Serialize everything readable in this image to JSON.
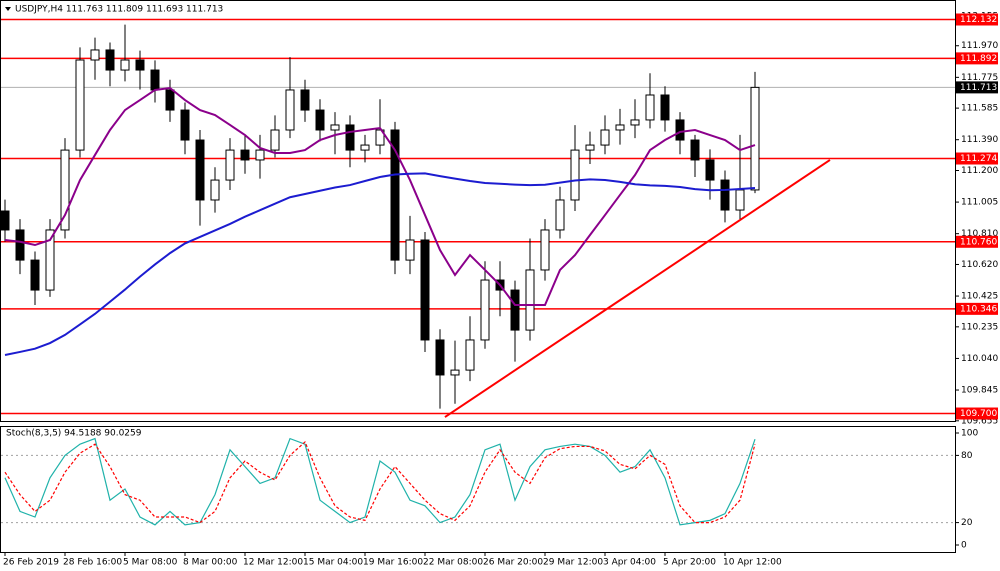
{
  "chart_data": [
    {
      "type": "candlestick",
      "title": "USDJPY,H4  111.763 111.809 111.693 111.713",
      "categories": [
        "26 Feb 2019",
        null,
        null,
        null,
        "28 Feb 16:00",
        null,
        null,
        null,
        "5 Mar 08:00",
        null,
        null,
        null,
        "8 Mar 00:00",
        null,
        null,
        null,
        "12 Mar 12:00",
        null,
        null,
        null,
        "15 Mar 04:00",
        null,
        null,
        null,
        "19 Mar 16:00",
        null,
        null,
        null,
        "22 Mar 08:00",
        null,
        null,
        null,
        "26 Mar 20:00",
        null,
        null,
        null,
        "29 Mar 12:00",
        null,
        null,
        null,
        "3 Apr 04:00",
        null,
        null,
        null,
        "5 Apr 20:00",
        null,
        null,
        null,
        "10 Apr 12:00",
        null,
        null
      ],
      "open": [
        110.95,
        110.833,
        110.647,
        110.462,
        110.833,
        111.326,
        111.882,
        111.944,
        111.82,
        111.882,
        111.82,
        111.697,
        111.573,
        111.388,
        111.018,
        111.141,
        111.326,
        111.265,
        111.326,
        111.45,
        111.697,
        111.573,
        111.45,
        111.481,
        111.326,
        111.357,
        111.45,
        110.647,
        110.771,
        110.154,
        109.938,
        109.968,
        110.154,
        110.524,
        110.462,
        110.215,
        110.586,
        110.833,
        111.018,
        111.326,
        111.357,
        111.45,
        111.481,
        111.512,
        111.666,
        111.512,
        111.388,
        111.265,
        111.141,
        110.956,
        111.08
      ],
      "high": [
        111.02,
        110.9,
        110.7,
        110.9,
        111.4,
        111.96,
        112.02,
        111.99,
        112.1,
        111.94,
        111.88,
        111.76,
        111.62,
        111.45,
        111.22,
        111.4,
        111.42,
        111.42,
        111.54,
        111.9,
        111.76,
        111.64,
        111.56,
        111.54,
        111.42,
        111.64,
        111.5,
        110.92,
        110.82,
        110.22,
        110.15,
        110.3,
        110.64,
        110.64,
        110.52,
        110.78,
        110.9,
        111.1,
        111.48,
        111.44,
        111.54,
        111.58,
        111.64,
        111.8,
        111.72,
        111.56,
        111.42,
        111.33,
        111.2,
        111.42,
        111.809
      ],
      "low": [
        110.76,
        110.56,
        110.37,
        110.42,
        110.78,
        111.28,
        111.76,
        111.72,
        111.75,
        111.7,
        111.62,
        111.5,
        111.3,
        110.86,
        110.94,
        111.08,
        111.18,
        111.15,
        111.28,
        111.4,
        111.5,
        111.38,
        111.3,
        111.22,
        111.25,
        111.3,
        110.56,
        110.56,
        110.08,
        109.73,
        109.76,
        109.9,
        110.1,
        110.3,
        110.02,
        110.15,
        110.52,
        110.78,
        110.95,
        111.24,
        111.3,
        111.36,
        111.4,
        111.46,
        111.44,
        111.3,
        111.16,
        111.02,
        110.88,
        110.9,
        111.06
      ],
      "close": [
        110.833,
        110.647,
        110.462,
        110.833,
        111.326,
        111.882,
        111.944,
        111.82,
        111.882,
        111.82,
        111.697,
        111.573,
        111.388,
        111.018,
        111.141,
        111.326,
        111.265,
        111.326,
        111.45,
        111.697,
        111.573,
        111.45,
        111.481,
        111.326,
        111.357,
        111.45,
        110.647,
        110.771,
        110.154,
        109.938,
        109.968,
        110.154,
        110.524,
        110.462,
        110.215,
        110.586,
        110.833,
        111.018,
        111.326,
        111.357,
        111.45,
        111.481,
        111.512,
        111.666,
        111.512,
        111.388,
        111.265,
        111.141,
        110.956,
        111.08,
        111.713
      ],
      "series": [
        {
          "color": "#8b008b",
          "values": [
            110.771,
            110.76,
            110.74,
            110.771,
            110.925,
            111.141,
            111.296,
            111.45,
            111.573,
            111.635,
            111.697,
            111.709,
            111.635,
            111.573,
            111.542,
            111.481,
            111.419,
            111.339,
            111.308,
            111.308,
            111.326,
            111.388,
            111.419,
            111.438,
            111.45,
            111.462,
            111.326,
            111.141,
            110.925,
            110.709,
            110.555,
            110.678,
            110.586,
            110.493,
            110.37,
            110.37,
            110.37,
            110.586,
            110.678,
            110.802,
            110.925,
            111.049,
            111.172,
            111.326,
            111.388,
            111.438,
            111.45,
            111.419,
            111.388,
            111.326,
            111.357
          ]
        },
        {
          "color": "#1c1cd0",
          "values": [
            110.061,
            110.08,
            110.1,
            110.135,
            110.185,
            110.25,
            110.315,
            110.39,
            110.465,
            110.545,
            110.62,
            110.69,
            110.75,
            110.79,
            110.83,
            110.87,
            110.915,
            110.955,
            110.995,
            111.035,
            111.055,
            111.075,
            111.095,
            111.11,
            111.135,
            111.16,
            111.175,
            111.18,
            111.182,
            111.165,
            111.15,
            111.135,
            111.123,
            111.118,
            111.113,
            111.11,
            111.112,
            111.125,
            111.138,
            111.145,
            111.141,
            111.13,
            111.115,
            111.108,
            111.105,
            111.098,
            111.085,
            111.078,
            111.08,
            111.086,
            111.092
          ]
        }
      ],
      "ylim": [
        109.66,
        112.24
      ],
      "yticks": [
        112.155,
        {
          "value": 111.97,
          "label": "111.970"
        },
        111.775,
        111.585,
        {
          "value": 111.39,
          "label": "111.390"
        },
        {
          "value": 111.2,
          "label": "111.200"
        },
        111.005,
        {
          "value": 110.81,
          "label": "110.810"
        },
        {
          "value": 110.62,
          "label": "110.620"
        },
        110.425,
        110.235,
        {
          "value": 110.04,
          "label": "110.040"
        },
        109.845,
        109.655
      ],
      "hlines": [
        112.132,
        111.892,
        111.274,
        {
          "value": 110.76,
          "label": "110.760"
        },
        110.346,
        {
          "value": 109.7,
          "label": "109.700"
        }
      ],
      "hline_color": "#ff0000",
      "current_price": 111.713,
      "trendline": {
        "x": [
          29.33,
          55
        ],
        "y": [
          109.678,
          111.265
        ],
        "color": "#ff0000"
      }
    },
    {
      "type": "line",
      "title": "Stoch(8,3,5) 94.5188 90.0259",
      "series": [
        {
          "color": "#20b2aa",
          "dash": false,
          "values": [
            60,
            30,
            25,
            60,
            80,
            90,
            95,
            40,
            50,
            25,
            18,
            30,
            18,
            20,
            45,
            85,
            70,
            55,
            60,
            95,
            90,
            40,
            30,
            20,
            25,
            75,
            65,
            40,
            35,
            20,
            25,
            45,
            85,
            90,
            40,
            70,
            85,
            88,
            90,
            88,
            80,
            65,
            70,
            85,
            60,
            18,
            20,
            22,
            28,
            55,
            94.5188
          ]
        },
        {
          "color": "#ff0000",
          "dash": true,
          "values": [
            65,
            45,
            30,
            40,
            65,
            82,
            90,
            70,
            45,
            40,
            25,
            25,
            25,
            20,
            30,
            60,
            75,
            65,
            58,
            80,
            92,
            60,
            35,
            25,
            22,
            50,
            70,
            55,
            40,
            28,
            22,
            35,
            65,
            85,
            65,
            55,
            78,
            86,
            88,
            88,
            84,
            72,
            68,
            80,
            72,
            35,
            20,
            20,
            25,
            40,
            90.0259
          ]
        }
      ],
      "ylim": [
        0,
        100
      ],
      "yticks": [
        100,
        80,
        20,
        0
      ],
      "levels": [
        80,
        20
      ]
    }
  ]
}
